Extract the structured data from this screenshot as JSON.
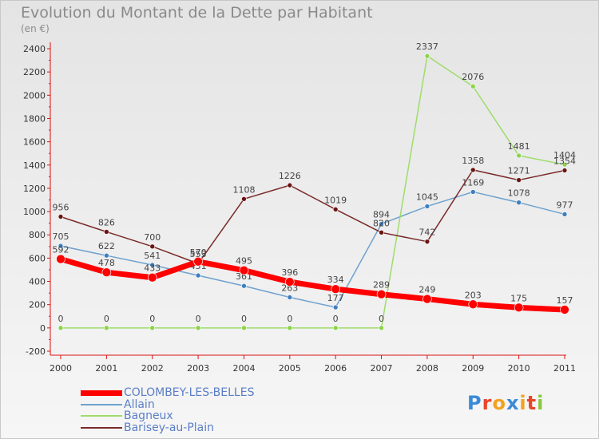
{
  "title": "Evolution du Montant de la Dette par Habitant",
  "subtitle": "(en €)",
  "logo": {
    "letters": [
      "P",
      "r",
      "o",
      "x",
      "i",
      "t",
      "i"
    ],
    "colors": [
      "#3a8ad8",
      "#e8462a",
      "#f2a21e",
      "#3a8ad8",
      "#f2a21e",
      "#e8462a",
      "#8cc63f"
    ]
  },
  "chart_data": {
    "type": "line",
    "x": [
      "2000",
      "2001",
      "2002",
      "2003",
      "2004",
      "2005",
      "2006",
      "2007",
      "2008",
      "2009",
      "2010",
      "2011"
    ],
    "ylim": [
      -200,
      2400
    ],
    "yticks": [
      -200,
      0,
      200,
      400,
      600,
      800,
      1000,
      1200,
      1400,
      1600,
      1800,
      2000,
      2200,
      2400
    ],
    "grid": false,
    "legend_position": "bottom-left",
    "series": [
      {
        "name": "COLOMBEY-LES-BELLES",
        "color": "#ff0000",
        "marker": "#ff0000",
        "width": 7,
        "values": [
          592,
          478,
          433,
          570,
          495,
          396,
          334,
          289,
          249,
          203,
          175,
          157
        ]
      },
      {
        "name": "Allain",
        "color": "#6ea2cf",
        "marker": "#3e7fc0",
        "width": 1.5,
        "values": [
          705,
          622,
          541,
          451,
          361,
          263,
          177,
          894,
          1045,
          1169,
          1078,
          977
        ]
      },
      {
        "name": "Bagneux",
        "color": "#9fdc6a",
        "marker": "#8cd34a",
        "width": 1.5,
        "values": [
          0,
          0,
          0,
          0,
          0,
          0,
          0,
          0,
          2337,
          2076,
          1481,
          1404
        ]
      },
      {
        "name": "Barisey-au-Plain",
        "color": "#7a2a2a",
        "marker": "#6b1414",
        "width": 1.5,
        "values": [
          956,
          826,
          700,
          553,
          1108,
          1226,
          1019,
          820,
          742,
          1358,
          1271,
          1354
        ]
      }
    ]
  }
}
